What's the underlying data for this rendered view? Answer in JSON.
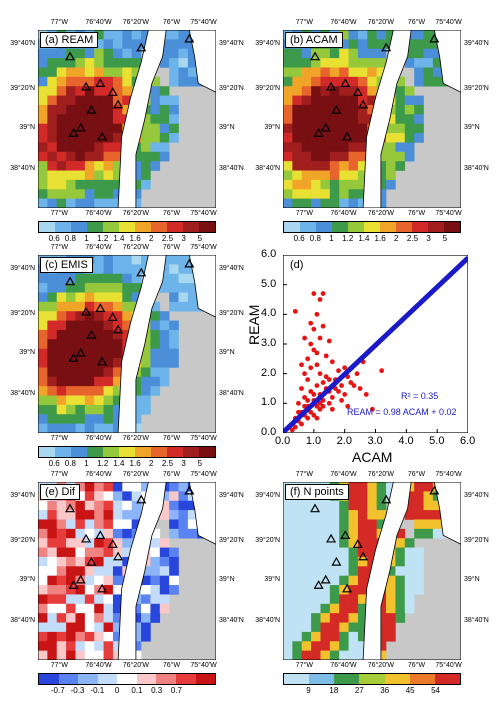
{
  "lon_ticks": [
    "77°W",
    "76°40'W",
    "76°20'W",
    "76°W",
    "75°40'W"
  ],
  "lat_ticks": [
    "39°40'N",
    "39°20'N",
    "39°N",
    "38°40'N"
  ],
  "panels": {
    "a": {
      "title": "(a) REAM"
    },
    "b": {
      "title": "(b) ACAM"
    },
    "c": {
      "title": "(c) EMIS"
    },
    "e": {
      "title": "(e) Dif"
    },
    "f": {
      "title": "(f) N points"
    }
  },
  "colorbars": {
    "conc": {
      "labels": [
        "0.6",
        "0.8",
        "1",
        "1.2",
        "1.4",
        "1.6",
        "2",
        "2.5",
        "3",
        "5"
      ],
      "colors": [
        "#a8d8f0",
        "#6cb4ea",
        "#4a8fd8",
        "#3c9a4a",
        "#96c83c",
        "#e8e032",
        "#f0a528",
        "#e8642d",
        "#d22a28",
        "#a01e1e",
        "#780f12"
      ]
    },
    "dif": {
      "labels": [
        "-0.7",
        "-0.3",
        "-0.1",
        "0",
        "0.1",
        "0.3",
        "0.7"
      ],
      "colors": [
        "#2846dc",
        "#5a82f0",
        "#8cb4f8",
        "#c3dcfa",
        "#ffffff",
        "#fac8c8",
        "#f08282",
        "#e63c3c",
        "#c81414"
      ]
    },
    "npts": {
      "labels": [
        "9",
        "18",
        "27",
        "36",
        "45",
        "54"
      ],
      "colors": [
        "#bfe3f4",
        "#7dbde8",
        "#3c9a4a",
        "#a6cc3a",
        "#f2c12e",
        "#ec7a2c",
        "#d42a26"
      ]
    }
  },
  "palette": {
    "land": "#c8c8c8",
    "water": "#ffffff",
    "coast": "#000000",
    "site_marker": "#000000"
  },
  "chart_data": {
    "type": "scatter",
    "title": "(d)",
    "xlabel": "ACAM",
    "ylabel": "REAM",
    "xlim": [
      0.0,
      6.0
    ],
    "ylim": [
      0.0,
      6.0
    ],
    "xticks": [
      "0.0",
      "1.0",
      "2.0",
      "3.0",
      "4.0",
      "5.0",
      "6.0"
    ],
    "yticks": [
      "0.0",
      "1.0",
      "2.0",
      "3.0",
      "4.0",
      "5.0",
      "6.0"
    ],
    "regression": {
      "slope": 0.98,
      "intercept": 0.02,
      "r2_text": "R² = 0.35",
      "eq_text": "REAM = 0.98 ACAM + 0.02"
    },
    "series": [
      {
        "color": "#e81414",
        "points": [
          [
            0.3,
            0.3
          ],
          [
            0.4,
            0.5
          ],
          [
            0.5,
            0.4
          ],
          [
            0.6,
            0.7
          ],
          [
            0.7,
            0.6
          ],
          [
            0.8,
            0.9
          ],
          [
            0.9,
            0.7
          ],
          [
            1.0,
            1.1
          ],
          [
            1.1,
            0.9
          ],
          [
            1.2,
            1.3
          ],
          [
            0.6,
            0.3
          ],
          [
            0.7,
            1.2
          ],
          [
            0.8,
            0.5
          ],
          [
            0.9,
            1.4
          ],
          [
            1.0,
            0.6
          ],
          [
            1.1,
            1.6
          ],
          [
            1.2,
            0.8
          ],
          [
            1.3,
            1.1
          ],
          [
            1.4,
            1.5
          ],
          [
            1.5,
            1.0
          ],
          [
            0.5,
            1.0
          ],
          [
            0.6,
            1.5
          ],
          [
            0.7,
            2.0
          ],
          [
            0.8,
            2.5
          ],
          [
            0.9,
            3.0
          ],
          [
            1.0,
            3.5
          ],
          [
            1.1,
            4.0
          ],
          [
            1.2,
            4.5
          ],
          [
            1.0,
            4.7
          ],
          [
            1.3,
            4.7
          ],
          [
            0.7,
            3.2
          ],
          [
            0.9,
            2.2
          ],
          [
            1.0,
            2.8
          ],
          [
            1.1,
            2.3
          ],
          [
            1.2,
            2.0
          ],
          [
            1.4,
            2.6
          ],
          [
            1.5,
            3.1
          ],
          [
            1.6,
            2.4
          ],
          [
            1.7,
            1.8
          ],
          [
            1.8,
            2.1
          ],
          [
            1.9,
            1.6
          ],
          [
            2.0,
            2.2
          ],
          [
            2.1,
            1.9
          ],
          [
            2.2,
            1.7
          ],
          [
            2.4,
            2.0
          ],
          [
            2.5,
            1.5
          ],
          [
            2.7,
            1.3
          ],
          [
            3.2,
            2.1
          ],
          [
            2.9,
            0.8
          ],
          [
            0.4,
            4.1
          ],
          [
            1.5,
            1.8
          ],
          [
            1.3,
            0.9
          ],
          [
            1.6,
            1.2
          ],
          [
            1.8,
            1.4
          ],
          [
            0.8,
            1.8
          ],
          [
            0.6,
            2.3
          ],
          [
            1.1,
            2.7
          ],
          [
            1.3,
            3.6
          ],
          [
            1.2,
            3.2
          ],
          [
            0.9,
            3.7
          ],
          [
            1.4,
            1.9
          ],
          [
            1.7,
            1.5
          ],
          [
            2.0,
            1.3
          ],
          [
            2.3,
            1.6
          ],
          [
            2.6,
            2.4
          ],
          [
            0.5,
            0.7
          ],
          [
            0.4,
            0.2
          ],
          [
            0.3,
            0.1
          ],
          [
            1.0,
            1.3
          ],
          [
            1.2,
            1.0
          ],
          [
            1.1,
            0.5
          ],
          [
            1.6,
            0.8
          ],
          [
            1.9,
            1.1
          ],
          [
            2.1,
            0.9
          ],
          [
            0.7,
            0.9
          ],
          [
            0.8,
            1.1
          ],
          [
            1.5,
            1.4
          ],
          [
            1.3,
            1.7
          ]
        ]
      }
    ]
  }
}
